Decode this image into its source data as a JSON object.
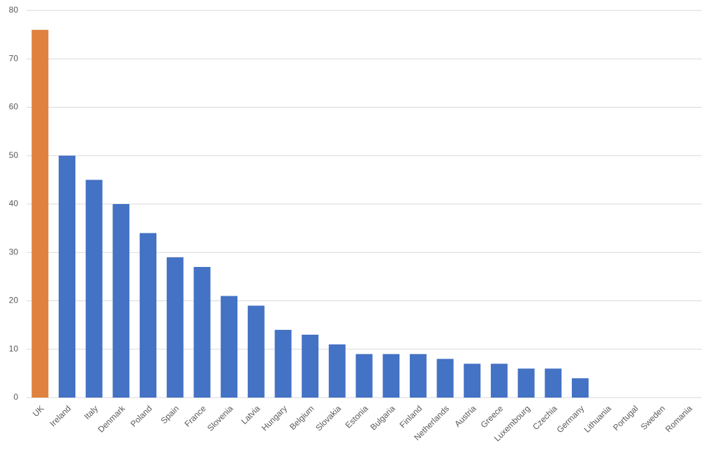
{
  "chart_data": {
    "type": "bar",
    "categories": [
      "UK",
      "Ireland",
      "Italy",
      "Denmark",
      "Poland",
      "Spain",
      "France",
      "Slovenia",
      "Latvia",
      "Hungary",
      "Belgium",
      "Slovakia",
      "Estonia",
      "Bulgaria",
      "Finland",
      "Netherlands",
      "Austria",
      "Greece",
      "Luxembourg",
      "Czechia",
      "Germany",
      "Lithuania",
      "Portugal",
      "Sweden",
      "Romania"
    ],
    "values": [
      76,
      50,
      45,
      40,
      34,
      29,
      27,
      21,
      19,
      14,
      13,
      11,
      9,
      9,
      9,
      8,
      7,
      7,
      6,
      6,
      4,
      0,
      0,
      0,
      0
    ],
    "colors": [
      "#e0813f",
      "#4472c4",
      "#4472c4",
      "#4472c4",
      "#4472c4",
      "#4472c4",
      "#4472c4",
      "#4472c4",
      "#4472c4",
      "#4472c4",
      "#4472c4",
      "#4472c4",
      "#4472c4",
      "#4472c4",
      "#4472c4",
      "#4472c4",
      "#4472c4",
      "#4472c4",
      "#4472c4",
      "#4472c4",
      "#4472c4",
      "#4472c4",
      "#4472c4",
      "#4472c4",
      "#4472c4"
    ],
    "ylim": [
      0,
      80
    ],
    "yticks": [
      0,
      10,
      20,
      30,
      40,
      50,
      60,
      70,
      80
    ],
    "grid": true
  }
}
